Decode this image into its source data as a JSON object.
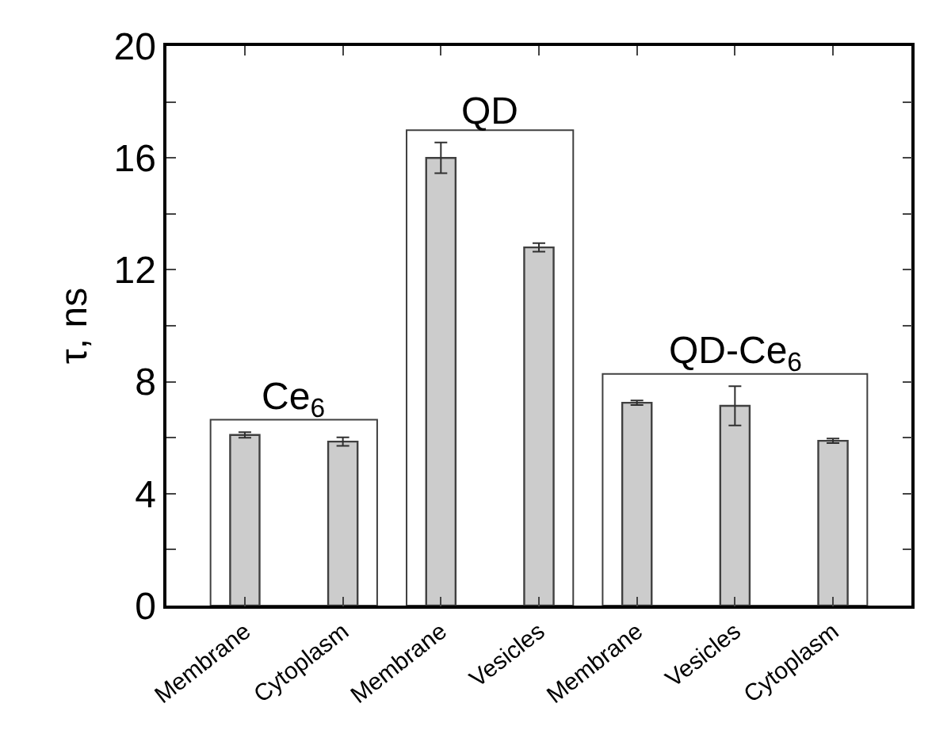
{
  "chart_data": {
    "type": "bar",
    "ylabel": "τ, ns",
    "categories": [
      "Membrane",
      "Cytoplasm",
      "Membrane",
      "Vesicles",
      "Membrane",
      "Vesicles",
      "Cytoplasm"
    ],
    "values": [
      6.1,
      5.86,
      16.0,
      12.8,
      7.25,
      7.14,
      5.89
    ],
    "errors": [
      0.1,
      0.15,
      0.55,
      0.15,
      0.08,
      0.7,
      0.08
    ],
    "color": "#cccccc",
    "ylim": [
      0,
      20
    ],
    "yticks": [
      0,
      {
        "value": 2,
        "label": null
      },
      4,
      {
        "value": 6,
        "label": null
      },
      8,
      {
        "value": 10,
        "label": null
      },
      12,
      {
        "value": 14,
        "label": null
      },
      16,
      {
        "value": 18,
        "label": null
      },
      20
    ],
    "annotations": [
      "Ce$_{6}$",
      "QD",
      "QD-Ce$_{6}$"
    ],
    "grid": false
  }
}
